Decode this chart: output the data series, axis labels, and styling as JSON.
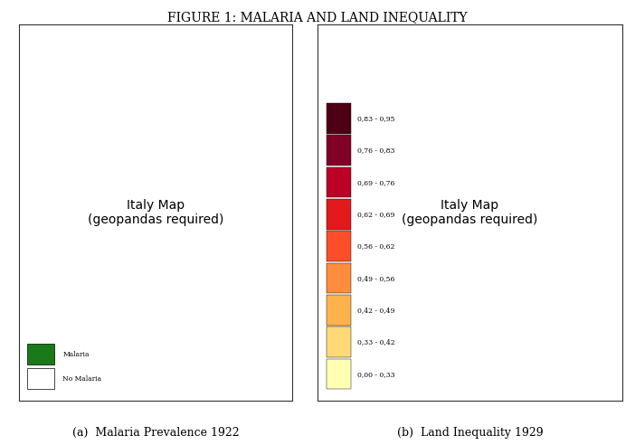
{
  "title": "Figure 1: Malaria and Land Inequality",
  "subtitle_a": "(a)  Malaria Prevalence 1922",
  "subtitle_b": "(b)  Land Inequality 1929",
  "legend_left": [
    "No Malaria",
    "Malaria"
  ],
  "legend_left_colors": [
    "#ffffff",
    "#1a7a1a"
  ],
  "legend_right_labels": [
    "0,00 - 0,33",
    "0,33 - 0,42",
    "0,42 - 0,49",
    "0,49 - 0,56",
    "0,56 - 0,62",
    "0,62 - 0,69",
    "0,69 - 0,76",
    "0,76 - 0,83",
    "0,83 - 0,95"
  ],
  "legend_right_colors": [
    "#ffffb2",
    "#fed976",
    "#feb24c",
    "#fd8d3c",
    "#fc4e2a",
    "#e31a1c",
    "#bd0026",
    "#800026",
    "#4d0013"
  ],
  "background_color": "#ffffff",
  "map_border_color": "#333333",
  "malaria_color": "#1a7a1a",
  "no_malaria_color": "#ffffff",
  "italy_outline_color": "#666666",
  "map_bg_color": "#ffffff",
  "right_map_bg": "#ffffff",
  "title_fontsize": 10,
  "subtitle_fontsize": 9,
  "legend_fontsize": 5.5
}
